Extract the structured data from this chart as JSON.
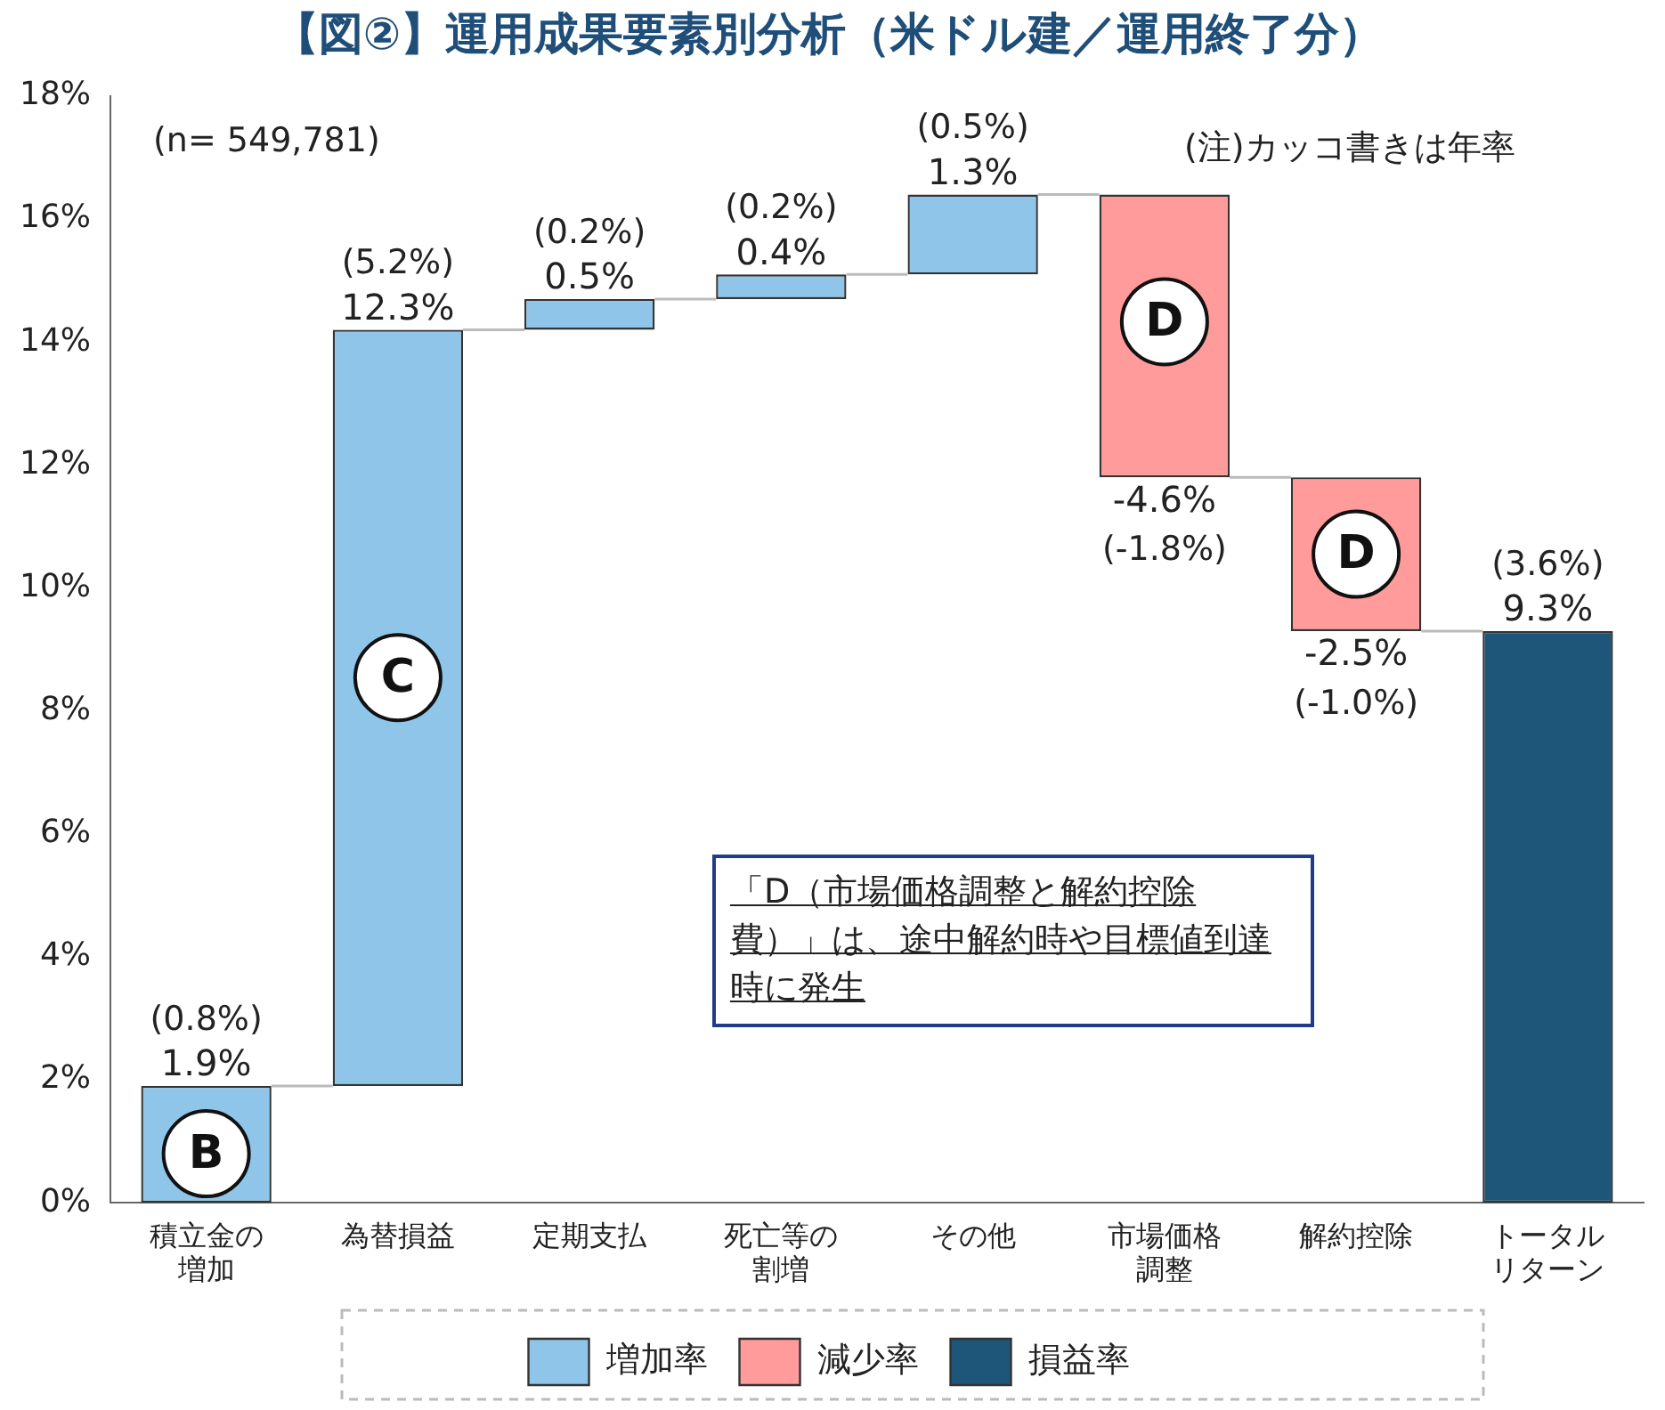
{
  "chart_data": {
    "type": "bar",
    "title": "【図②】運用成果要素別分析（米ドル建／運用終了分）",
    "categories": [
      "積立金の増加",
      "為替損益",
      "定期支払",
      "死亡等の割増",
      "その他",
      "市場価格調整",
      "解約控除",
      "トータルリターン"
    ],
    "series": [
      {
        "name": "増加率",
        "color": "#8ec5e8",
        "values": [
          1.9,
          12.3,
          0.5,
          0.4,
          1.3,
          null,
          null,
          null
        ],
        "base": [
          0,
          1.9,
          14.2,
          14.7,
          15.1,
          null,
          null,
          null
        ],
        "value_labels": [
          "1.9%",
          "12.3%",
          "0.5%",
          "0.4%",
          "1.3%",
          null,
          null,
          null
        ]
      },
      {
        "name": "減少率",
        "color": "#ff9b9b",
        "values": [
          null,
          null,
          null,
          null,
          null,
          -4.6,
          -2.5,
          null
        ],
        "base": [
          null,
          null,
          null,
          null,
          null,
          16.4,
          11.8,
          null
        ],
        "value_labels": [
          null,
          null,
          null,
          null,
          null,
          "-4.6%",
          "-2.5%",
          null
        ]
      },
      {
        "name": "損益率",
        "color": "#1d5678",
        "values": [
          null,
          null,
          null,
          null,
          null,
          null,
          null,
          9.3
        ],
        "base": [
          null,
          null,
          null,
          null,
          null,
          null,
          null,
          0
        ],
        "value_labels": [
          null,
          null,
          null,
          null,
          null,
          null,
          null,
          "9.3%"
        ]
      }
    ],
    "ylim": [
      0,
      18
    ],
    "yticks": [
      {
        "value": 0,
        "label": "0%"
      },
      {
        "value": 2,
        "label": "2%"
      },
      {
        "value": 4,
        "label": "4%"
      },
      {
        "value": 6,
        "label": "6%"
      },
      {
        "value": 8,
        "label": "8%"
      },
      {
        "value": 10,
        "label": "10%"
      },
      {
        "value": 12,
        "label": "12%"
      },
      {
        "value": 14,
        "label": "14%"
      },
      {
        "value": 16,
        "label": "16%"
      },
      {
        "value": 18,
        "label": "18%"
      }
    ],
    "grid": false,
    "legend": "bottom",
    "annotations": [
      "(n= 549,781)",
      "(注)カッコ書きは年率",
      "「D（市場価格調整と解約控除費）」は、途中解約時や目標値到達時に発生",
      {
        "text": "(0.8%)",
        "x": "積立金の増加",
        "y": 1.9
      },
      {
        "text": "(5.2%)",
        "x": "為替損益",
        "y": 14.2
      },
      {
        "text": "(0.2%)",
        "x": "定期支払",
        "y": 14.7
      },
      {
        "text": "(0.2%)",
        "x": "死亡等の割増",
        "y": 15.1
      },
      {
        "text": "(0.5%)",
        "x": "その他",
        "y": 16.4
      },
      {
        "text": "(-1.8%)",
        "x": "市場価格調整",
        "y": 11.8
      },
      {
        "text": "(-1.0%)",
        "x": "解約控除",
        "y": 9.3
      },
      {
        "text": "(3.6%)",
        "x": "トータルリターン",
        "y": 9.3
      },
      "B",
      "C",
      "D",
      "D"
    ]
  }
}
